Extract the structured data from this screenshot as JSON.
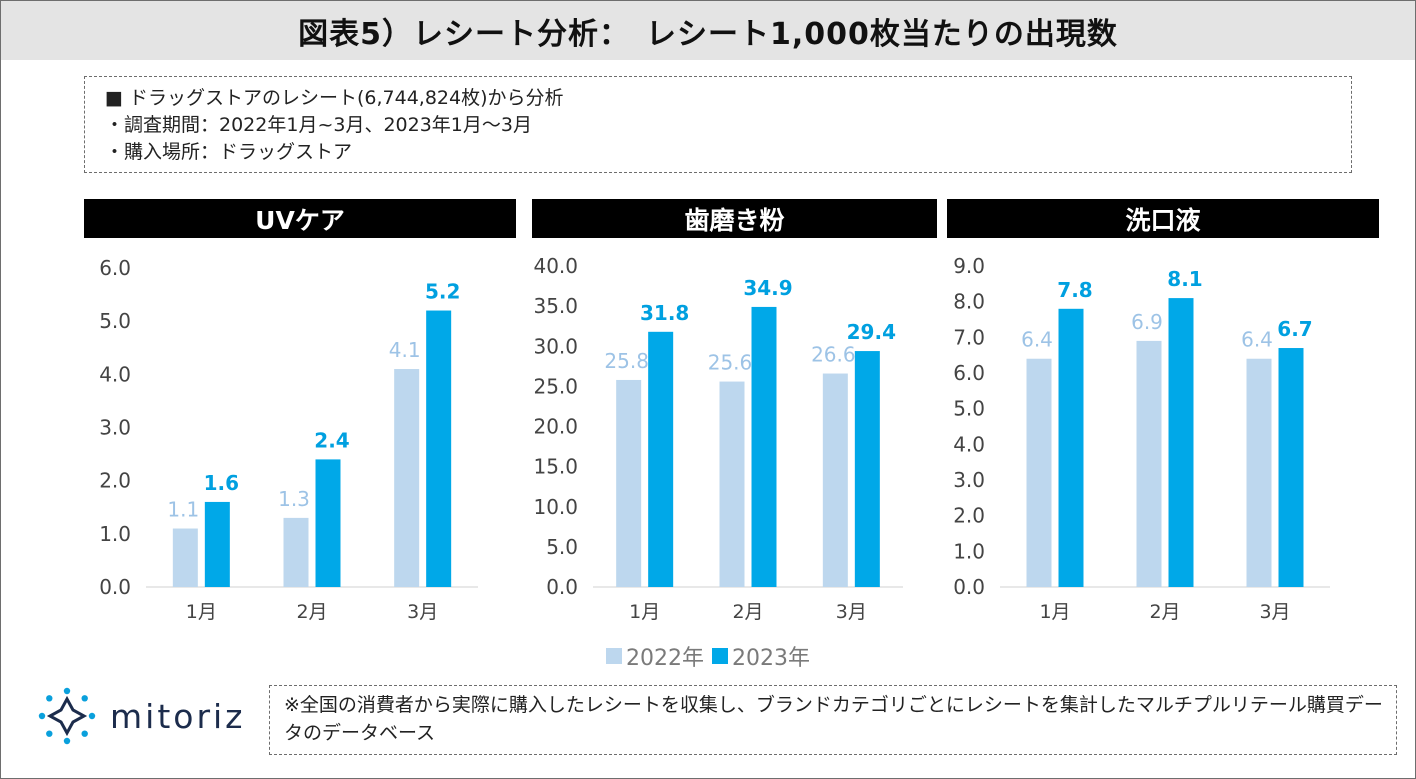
{
  "title": "図表5）レシート分析：　レシート1,000枚当たりの出現数",
  "info": {
    "lines": [
      "■ ドラッグストアのレシート(6,744,824枚)から分析",
      "・調査期間：2022年1月~3月、2023年1月～3月",
      "・購入場所：ドラッグストア"
    ]
  },
  "colors": {
    "series_2022": "#bdd7ee",
    "series_2023": "#00a8e8",
    "label_2022": "#9dc3e6",
    "label_2023": "#00a0e0"
  },
  "legend": {
    "s1": "2022年",
    "s2": "2023年"
  },
  "chart_data": [
    {
      "type": "bar",
      "title": "UVケア",
      "categories": [
        "1月",
        "2月",
        "3月"
      ],
      "series": [
        {
          "name": "2022年",
          "values": [
            1.1,
            1.3,
            4.1
          ]
        },
        {
          "name": "2023年",
          "values": [
            1.6,
            2.4,
            5.2
          ]
        }
      ],
      "ylim": [
        0,
        6
      ],
      "yticks": [
        "0.0",
        "1.0",
        "2.0",
        "3.0",
        "4.0",
        "5.0",
        "6.0"
      ],
      "grid": false,
      "legend": "bottom"
    },
    {
      "type": "bar",
      "title": "歯磨き粉",
      "categories": [
        "1月",
        "2月",
        "3月"
      ],
      "series": [
        {
          "name": "2022年",
          "values": [
            25.8,
            25.6,
            26.6
          ]
        },
        {
          "name": "2023年",
          "values": [
            31.8,
            34.9,
            29.4
          ]
        }
      ],
      "ylim": [
        0,
        40
      ],
      "yticks": [
        "0.0",
        "5.0",
        "10.0",
        "15.0",
        "20.0",
        "25.0",
        "30.0",
        "35.0",
        "40.0"
      ],
      "grid": false,
      "legend": "bottom"
    },
    {
      "type": "bar",
      "title": "洗口液",
      "categories": [
        "1月",
        "2月",
        "3月"
      ],
      "series": [
        {
          "name": "2022年",
          "values": [
            6.4,
            6.9,
            6.4
          ]
        },
        {
          "name": "2023年",
          "values": [
            7.8,
            8.1,
            6.7
          ]
        }
      ],
      "ylim": [
        0,
        9
      ],
      "yticks": [
        "0.0",
        "1.0",
        "2.0",
        "3.0",
        "4.0",
        "5.0",
        "6.0",
        "7.0",
        "8.0",
        "9.0"
      ],
      "grid": false,
      "legend": "bottom"
    }
  ],
  "logo_text": "mitoriz",
  "note": "※全国の消費者から実際に購入したレシートを収集し、ブランドカテゴリごとにレシートを集計したマルチプルリテール購買データのデータベース"
}
